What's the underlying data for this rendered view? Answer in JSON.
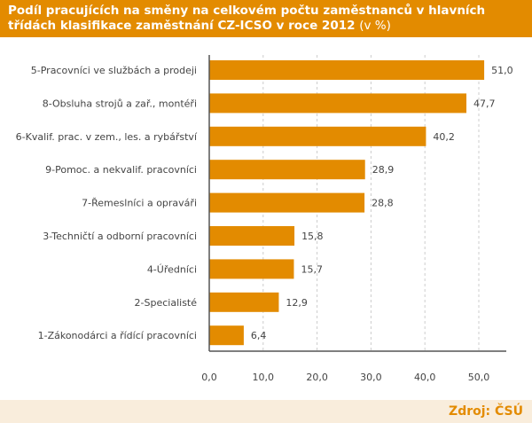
{
  "chart_data": {
    "type": "bar",
    "orientation": "horizontal",
    "title": "Podíl pracujících na směny na celkovém počtu zaměstnanců v hlavních třídách klasifikace zaměstnání CZ-ICSO v roce 2012",
    "title_unit": "(v %)",
    "categories": [
      "5-Pracovníci ve službách a prodeji",
      "8-Obsluha strojů a zař., montéři",
      "6-Kvalif. prac. v zem., les. a rybářství",
      "9-Pomoc. a nekvalif. pracovníci",
      "7-Řemeslníci a opraváři",
      "3-Techničtí a odborní pracovníci",
      "4-Úředníci",
      "2-Specialisté",
      "1-Zákonodárci a řídící pracovníci"
    ],
    "values": [
      51.0,
      47.7,
      40.2,
      28.9,
      28.8,
      15.8,
      15.7,
      12.9,
      6.4
    ],
    "value_labels": [
      "51,0",
      "47,7",
      "40,2",
      "28,9",
      "28,8",
      "15,8",
      "15,7",
      "12,9",
      "6,4"
    ],
    "xticks": [
      0,
      10,
      20,
      30,
      40,
      50
    ],
    "xtick_labels": [
      "0,0",
      "10,0",
      "20,0",
      "30,0",
      "40,0",
      "50,0"
    ],
    "xlim": [
      0,
      55
    ],
    "grid": true,
    "bar_color": "#e38b00"
  },
  "footer": {
    "source": "Zdroj: ČSÚ"
  }
}
